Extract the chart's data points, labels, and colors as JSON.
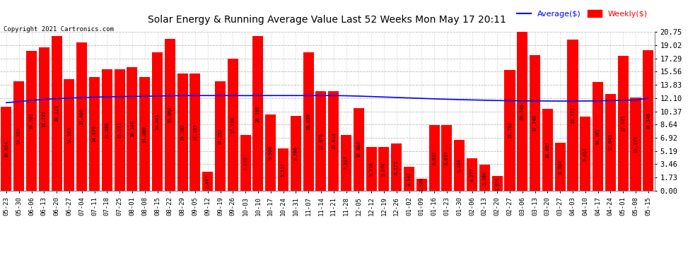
{
  "title": "Solar Energy & Running Average Value Last 52 Weeks Mon May 17 20:11",
  "copyright": "Copyright 2021 Cartronics.com",
  "yticks": [
    0.0,
    1.73,
    3.46,
    5.19,
    6.92,
    8.64,
    10.37,
    12.1,
    13.83,
    15.56,
    17.29,
    19.02,
    20.75
  ],
  "bar_color": "#ff0000",
  "avg_line_color": "#0000ff",
  "background_color": "#ffffff",
  "grid_color": "#bbbbbb",
  "categories": [
    "05-23",
    "05-30",
    "06-06",
    "06-13",
    "06-20",
    "06-27",
    "07-04",
    "07-11",
    "07-18",
    "07-25",
    "08-01",
    "08-08",
    "08-15",
    "08-22",
    "08-29",
    "09-05",
    "09-12",
    "09-19",
    "09-26",
    "10-03",
    "10-10",
    "10-17",
    "10-24",
    "10-31",
    "11-07",
    "11-14",
    "11-21",
    "11-28",
    "12-05",
    "12-12",
    "12-19",
    "12-26",
    "01-02",
    "01-09",
    "01-16",
    "01-23",
    "01-30",
    "02-06",
    "02-13",
    "02-20",
    "02-27",
    "03-06",
    "03-13",
    "03-20",
    "03-27",
    "04-03",
    "04-10",
    "04-17",
    "04-24",
    "05-01",
    "05-08",
    "05-15"
  ],
  "weekly_values": [
    10.934,
    14.313,
    18.301,
    18.745,
    20.223,
    14.583,
    19.406,
    14.87,
    15.886,
    15.871,
    16.14,
    14.808,
    18.081,
    19.864,
    15.283,
    15.355,
    2.447,
    14.253,
    17.218,
    7.278,
    20.195,
    9.966,
    5.517,
    9.786,
    18.039,
    12.978,
    13.013,
    7.317,
    10.804,
    5.716,
    5.674,
    6.171,
    3.143,
    1.579,
    8.622,
    8.617,
    6.594,
    4.277,
    3.38,
    1.921,
    15.792,
    20.745,
    17.74,
    10.695,
    6.304,
    19.772,
    9.651,
    14.181,
    12.643,
    17.621,
    12.175,
    18.346
  ],
  "avg_values": [
    11.5,
    11.65,
    11.8,
    11.93,
    12.03,
    12.1,
    12.17,
    12.22,
    12.26,
    12.29,
    12.32,
    12.34,
    12.37,
    12.4,
    12.42,
    12.43,
    12.43,
    12.43,
    12.43,
    12.42,
    12.43,
    12.43,
    12.43,
    12.43,
    12.43,
    12.43,
    12.43,
    12.4,
    12.36,
    12.3,
    12.24,
    12.18,
    12.12,
    12.06,
    12.0,
    11.95,
    11.9,
    11.86,
    11.82,
    11.78,
    11.76,
    11.74,
    11.73,
    11.72,
    11.71,
    11.71,
    11.72,
    11.74,
    11.77,
    11.81,
    11.85,
    12.1
  ],
  "legend_avg_label": "Average($)",
  "legend_weekly_label": "Weekly($)"
}
